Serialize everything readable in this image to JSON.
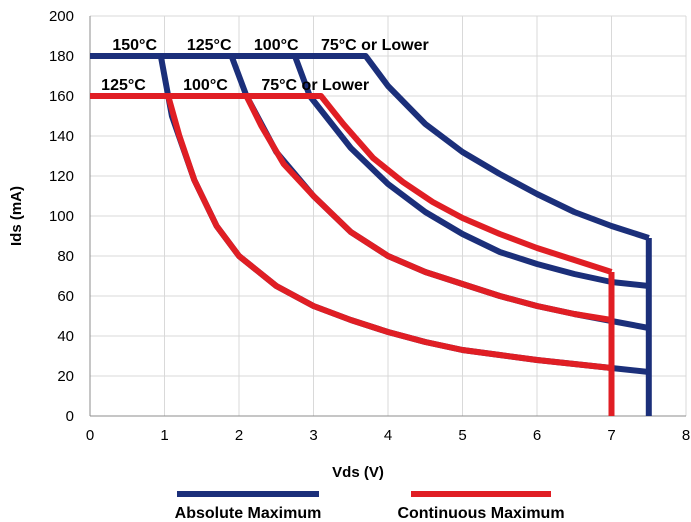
{
  "chart_data": {
    "type": "line",
    "title": "",
    "xlabel": "Vds (V)",
    "ylabel": "Ids (mA)",
    "xlim": [
      0,
      8
    ],
    "ylim": [
      0,
      200
    ],
    "x_ticks": [
      "0",
      "1",
      "2",
      "3",
      "4",
      "5",
      "6",
      "7",
      "8"
    ],
    "y_ticks": [
      "0",
      "20",
      "40",
      "60",
      "80",
      "100",
      "120",
      "140",
      "160",
      "180",
      "200"
    ],
    "grid": "both",
    "legend_position": "bottom",
    "colors": {
      "absolute": "#1b2f7a",
      "continuous": "#e01e24"
    },
    "legend": [
      {
        "label": "Absolute Maximum",
        "color": "#1b2f7a"
      },
      {
        "label": "Continuous Maximum",
        "color": "#e01e24"
      }
    ],
    "annotations": [
      {
        "text": "150°C",
        "x": 0.3,
        "y": 183
      },
      {
        "text": "125°C",
        "x": 1.3,
        "y": 183
      },
      {
        "text": "100°C",
        "x": 2.2,
        "y": 183
      },
      {
        "text": "75°C or Lower",
        "x": 3.1,
        "y": 183
      },
      {
        "text": "125°C",
        "x": 0.15,
        "y": 163
      },
      {
        "text": "100°C",
        "x": 1.25,
        "y": 163
      },
      {
        "text": "75°C or Lower",
        "x": 2.3,
        "y": 163
      }
    ],
    "series": [
      {
        "group": "absolute",
        "x": [
          0,
          0.95,
          1.1,
          1.4,
          1.7,
          2,
          2.5,
          3,
          3.5,
          4,
          4.5,
          5,
          5.5,
          6,
          6.5,
          7,
          7.5
        ],
        "values": [
          180,
          180,
          150,
          118,
          95,
          80,
          65,
          55,
          48,
          42,
          37,
          33,
          30.5,
          28,
          26,
          24,
          22
        ]
      },
      {
        "group": "absolute",
        "x": [
          0,
          1.9,
          2.1,
          2.5,
          3,
          3.5,
          4,
          4.5,
          5,
          5.5,
          6,
          6.5,
          7,
          7.5
        ],
        "values": [
          180,
          180,
          160,
          132,
          110,
          92,
          80,
          72,
          66,
          60,
          55,
          51,
          47.5,
          44
        ]
      },
      {
        "group": "absolute",
        "x": [
          0,
          2.75,
          2.95,
          3.5,
          4,
          4.5,
          5,
          5.5,
          6,
          6.5,
          7,
          7.5
        ],
        "values": [
          180,
          180,
          160,
          134,
          116,
          102,
          91,
          82,
          76,
          71,
          67,
          65
        ]
      },
      {
        "group": "absolute",
        "x": [
          0,
          3.7,
          4,
          4.5,
          5,
          5.5,
          6,
          6.5,
          7,
          7.5
        ],
        "values": [
          180,
          180,
          165,
          146,
          132,
          121,
          111,
          102,
          95,
          89
        ]
      },
      {
        "group": "absolute",
        "x": [
          7.5,
          7.5
        ],
        "values": [
          89,
          0
        ]
      },
      {
        "group": "continuous",
        "x": [
          0,
          1.05,
          1.2,
          1.4,
          1.7,
          2,
          2.5,
          3,
          3.5,
          4,
          4.5,
          5,
          5.5,
          6,
          6.5,
          7
        ],
        "values": [
          160,
          160,
          140,
          118,
          95,
          80,
          65,
          55,
          48,
          42,
          37,
          33,
          30.5,
          28,
          26,
          24
        ]
      },
      {
        "group": "continuous",
        "x": [
          0,
          2.1,
          2.3,
          2.6,
          3,
          3.5,
          4,
          4.5,
          5,
          5.5,
          6,
          6.5,
          7
        ],
        "values": [
          160,
          160,
          145,
          126,
          110,
          92,
          80,
          72,
          66,
          60,
          55,
          51,
          48
        ]
      },
      {
        "group": "continuous",
        "x": [
          0,
          3.1,
          3.4,
          3.8,
          4.2,
          4.6,
          5,
          5.5,
          6,
          6.5,
          7
        ],
        "values": [
          160,
          160,
          146,
          129,
          117,
          107,
          99,
          91,
          84,
          78,
          72
        ]
      },
      {
        "group": "continuous",
        "x": [
          7,
          7
        ],
        "values": [
          72,
          0
        ]
      }
    ]
  }
}
